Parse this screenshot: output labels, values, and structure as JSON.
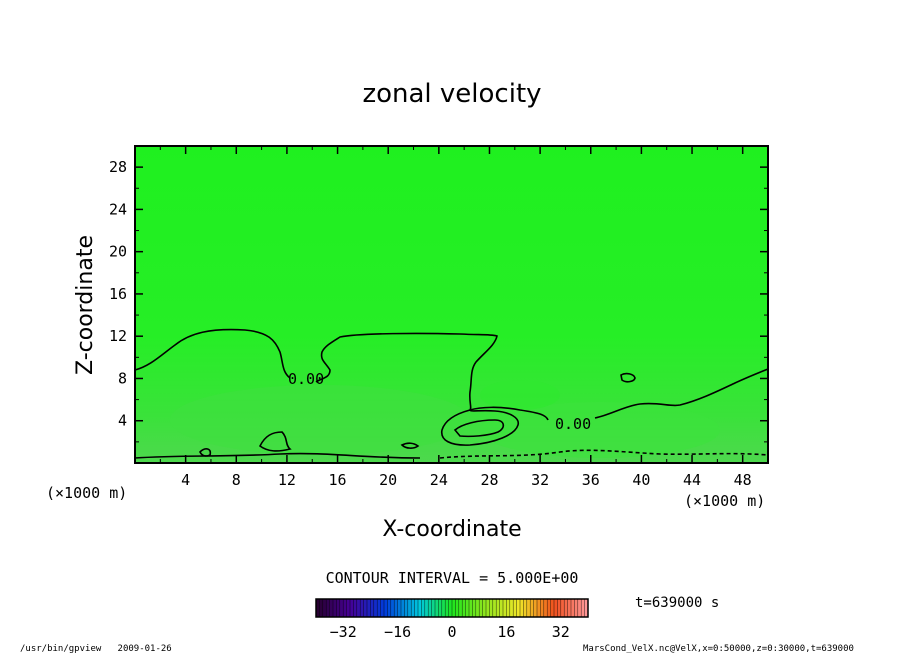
{
  "chart_data": {
    "type": "heatmap",
    "title": "zonal velocity",
    "xlabel": "X-coordinate",
    "ylabel": "Z-coordinate",
    "x_unit": "(×1000 m)",
    "y_unit": "(×1000 m)",
    "xlim": [
      0,
      50
    ],
    "ylim": [
      0,
      30
    ],
    "x_ticks": [
      "4",
      "8",
      "12",
      "16",
      "20",
      "24",
      "28",
      "32",
      "36",
      "40",
      "44",
      "48"
    ],
    "y_ticks": [
      "4",
      "8",
      "12",
      "16",
      "20",
      "24",
      "28"
    ],
    "contour_labels": [
      "0.00",
      "0.00"
    ],
    "contour_interval": "CONTOUR INTERVAL = 5.000E+00",
    "time_label": "t=639000 s",
    "colorbar": {
      "range": [
        -40,
        40
      ],
      "ticks": [
        "−32",
        "−16",
        "0",
        "16",
        "32"
      ]
    },
    "colors": {
      "field": "#22ee22",
      "field_low": "#44dd44",
      "contour": "#000000"
    }
  },
  "footer": {
    "program": "/usr/bin/gpview   2009-01-26",
    "source": "MarsCond_VelX.nc@VelX,x=0:50000,z=0:30000,t=639000"
  }
}
